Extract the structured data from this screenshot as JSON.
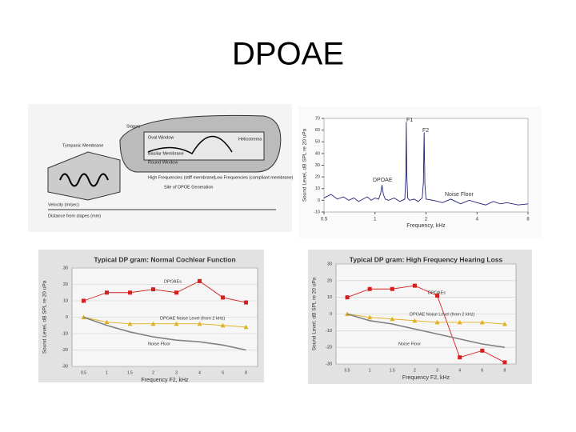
{
  "title": "DPOAE",
  "diagram": {
    "labels": [
      "Stapes",
      "Oval Window",
      "Helicotrema",
      "Tympanic Membrane",
      "Basilar Membrane",
      "Round Window",
      "High Frequencies (stiff membrane)",
      "Low Frequencies (compliant membrane)",
      "Site of DPOE Generation",
      "Velocity (m/sec)",
      "Distance from stapes (mm)"
    ]
  },
  "chart_data": [
    {
      "type": "line",
      "y_label": "Sound Level, dB SPL re 20 uPa",
      "x_label": "Frequency, kHz",
      "log_x": true,
      "xlim": [
        0.5,
        8
      ],
      "xticks": [
        0.5,
        1,
        2,
        4,
        8
      ],
      "ylim": [
        -10,
        70
      ],
      "yticks": [
        -10,
        0,
        10,
        20,
        30,
        40,
        50,
        60,
        70
      ],
      "grid": false,
      "annotations": [
        "F1",
        "F2",
        "DPOAE",
        "Noise Floor"
      ],
      "x": [
        0.5,
        0.55,
        0.6,
        0.65,
        0.7,
        0.75,
        0.8,
        0.85,
        0.9,
        0.95,
        1.0,
        1.05,
        1.08,
        1.1,
        1.12,
        1.15,
        1.2,
        1.3,
        1.4,
        1.5,
        1.52,
        1.53,
        1.54,
        1.56,
        1.6,
        1.7,
        1.8,
        1.9,
        1.93,
        1.95,
        1.97,
        2.0,
        2.2,
        2.5,
        2.8,
        3.2,
        3.6,
        4,
        4.5,
        5,
        5.5,
        6,
        7,
        8
      ],
      "series": [
        {
          "color": "#22227a",
          "values": [
            2,
            5,
            1,
            3,
            0,
            2,
            -1,
            1,
            3,
            0,
            2,
            1,
            6,
            13,
            5,
            1,
            0,
            2,
            -1,
            1,
            20,
            67,
            22,
            2,
            0,
            1,
            -1,
            2,
            15,
            58,
            14,
            1,
            0,
            -2,
            1,
            -3,
            0,
            -2,
            -4,
            -1,
            -3,
            -2,
            -4,
            -3
          ]
        }
      ]
    },
    {
      "type": "line",
      "title": "Typical DP gram: Normal Cochlear Function",
      "y_label": "Sound Level, dB SPL re 20 uPa",
      "x_label": "Frequency F2, kHz",
      "categories": [
        "0.5",
        "1",
        "1.5",
        "2",
        "3",
        "4",
        "6",
        "8"
      ],
      "ylim": [
        -30,
        30
      ],
      "yticks": [
        -30,
        -20,
        -10,
        0,
        10,
        20,
        30
      ],
      "grid": true,
      "series": [
        {
          "name": "DPOAEs",
          "color": "#d42020",
          "marker": "square",
          "values": [
            10,
            15,
            15,
            17,
            15,
            22,
            12,
            9
          ]
        },
        {
          "name": "DPOAE Noise Level (from 2 kHz)",
          "color": "#e0b020",
          "marker": "triangle",
          "values": [
            0,
            -3,
            -4,
            -4,
            -4,
            -4,
            -5,
            -6
          ]
        },
        {
          "name": "Noise Floor",
          "color": "#808080",
          "marker": null,
          "values": [
            0,
            -5,
            -9,
            -12,
            -14,
            -15,
            -17,
            -20
          ]
        }
      ]
    },
    {
      "type": "line",
      "title": "Typical DP gram: High Frequency Hearing Loss",
      "y_label": "Sound Level, dB SPL re 20 uPa",
      "x_label": "Frequency F2, kHz",
      "categories": [
        "0.5",
        "1",
        "1.5",
        "2",
        "3",
        "4",
        "6",
        "8"
      ],
      "ylim": [
        -30,
        30
      ],
      "yticks": [
        -30,
        -20,
        -10,
        0,
        10,
        20,
        30
      ],
      "grid": true,
      "series": [
        {
          "name": "DPOAEs",
          "color": "#d42020",
          "marker": "square",
          "values": [
            10,
            15,
            15,
            17,
            11,
            -26,
            -22,
            -29
          ]
        },
        {
          "name": "DPOAE Noise Level (from 2 kHz)",
          "color": "#e0b020",
          "marker": "triangle",
          "values": [
            0,
            -2,
            -3,
            -4,
            -5,
            -5,
            -5,
            -6
          ]
        },
        {
          "name": "Noise Floor",
          "color": "#808080",
          "marker": null,
          "values": [
            0,
            -4,
            -6,
            -9,
            -12,
            -15,
            -18,
            -20
          ]
        }
      ]
    }
  ]
}
